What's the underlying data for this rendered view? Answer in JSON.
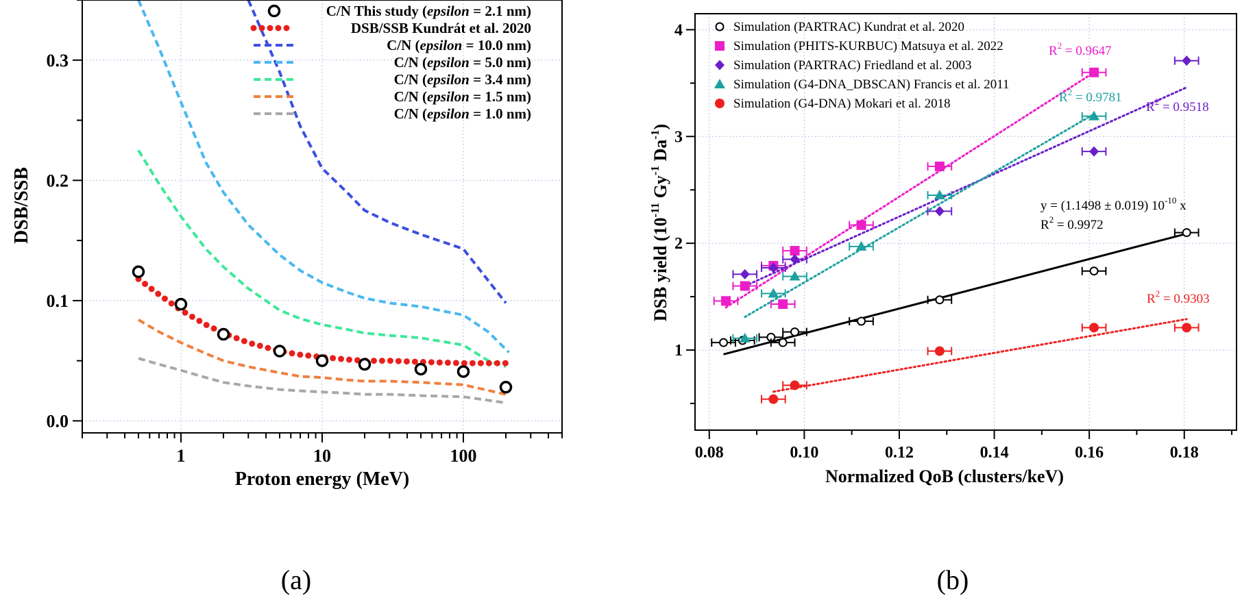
{
  "panel_a_label": "(a)",
  "panel_b_label": "(b)",
  "chart_data": [
    {
      "type": "line",
      "panel": "(a)",
      "xlabel": "Proton energy (MeV)",
      "ylabel": "DSB/SSB",
      "xscale": "log",
      "xlim": [
        0.2,
        500
      ],
      "ylim": [
        -0.01,
        0.35
      ],
      "xticks": [
        1,
        10,
        100
      ],
      "xtick_labels": [
        "1",
        "10",
        "100"
      ],
      "yticks": [
        0.0,
        0.1,
        0.2,
        0.3
      ],
      "ytick_labels": [
        "0.0",
        "0.1",
        "0.2",
        "0.3"
      ],
      "grid": true,
      "legend_position": "top-right",
      "series": [
        {
          "legend": "C/N This study",
          "legend_param": "epsilon",
          "legend_value": " = 2.1 nm)",
          "style": "open-circle",
          "color": "#000000",
          "x": [
            0.5,
            1,
            2,
            5,
            10,
            20,
            50,
            100,
            200
          ],
          "y": [
            0.124,
            0.097,
            0.072,
            0.058,
            0.05,
            0.047,
            0.043,
            0.041,
            0.028
          ]
        },
        {
          "legend": "DSB/SSB Kundrát et al. 2020",
          "style": "dotted-thick",
          "color": "#e8201c",
          "x": [
            0.5,
            0.7,
            1,
            1.5,
            2,
            3,
            5,
            7,
            10,
            15,
            20,
            30,
            50,
            100,
            200
          ],
          "y": [
            0.118,
            0.105,
            0.092,
            0.08,
            0.073,
            0.065,
            0.058,
            0.055,
            0.053,
            0.051,
            0.05,
            0.05,
            0.049,
            0.048,
            0.048
          ]
        },
        {
          "legend": "C/N (",
          "legend_param": "epsilon",
          "legend_value": " = 10.0 nm)",
          "style": "dashed",
          "color": "#3c4fe0",
          "x": [
            3,
            5,
            7,
            10,
            15,
            20,
            30,
            50,
            100,
            200
          ],
          "y": [
            0.35,
            0.29,
            0.245,
            0.21,
            0.19,
            0.175,
            0.165,
            0.155,
            0.143,
            0.098
          ]
        },
        {
          "legend": "C/N (",
          "legend_param": "epsilon",
          "legend_value": " = 5.0 nm)",
          "style": "dashed",
          "color": "#4ab8f0",
          "x": [
            0.5,
            0.7,
            1,
            1.5,
            2,
            3,
            5,
            7,
            10,
            15,
            20,
            30,
            50,
            100,
            150,
            210
          ],
          "y": [
            0.35,
            0.31,
            0.265,
            0.215,
            0.19,
            0.163,
            0.138,
            0.125,
            0.115,
            0.107,
            0.102,
            0.098,
            0.095,
            0.088,
            0.074,
            0.057
          ]
        },
        {
          "legend": "C/N (",
          "legend_param": "epsilon",
          "legend_value": " = 3.4 nm)",
          "style": "dashed",
          "color": "#3ee89a",
          "x": [
            0.5,
            0.7,
            1,
            1.5,
            2,
            3,
            5,
            7,
            10,
            15,
            20,
            30,
            50,
            100,
            150,
            200
          ],
          "y": [
            0.225,
            0.197,
            0.17,
            0.143,
            0.128,
            0.11,
            0.092,
            0.085,
            0.08,
            0.076,
            0.073,
            0.071,
            0.069,
            0.063,
            0.05,
            0.045
          ]
        },
        {
          "legend": "C/N (",
          "legend_param": "epsilon",
          "legend_value": " = 1.5 nm)",
          "style": "dashed",
          "color": "#f08040",
          "x": [
            0.5,
            0.7,
            1,
            1.5,
            2,
            3,
            5,
            7,
            10,
            15,
            20,
            30,
            50,
            100,
            200
          ],
          "y": [
            0.084,
            0.074,
            0.065,
            0.056,
            0.05,
            0.045,
            0.04,
            0.037,
            0.036,
            0.034,
            0.033,
            0.033,
            0.032,
            0.03,
            0.022
          ]
        },
        {
          "legend": "C/N (",
          "legend_param": "epsilon",
          "legend_value": " = 1.0 nm)",
          "style": "dashed",
          "color": "#a8a8a8",
          "x": [
            0.5,
            0.7,
            1,
            1.5,
            2,
            3,
            5,
            7,
            10,
            15,
            20,
            30,
            50,
            100,
            200
          ],
          "y": [
            0.052,
            0.047,
            0.042,
            0.036,
            0.032,
            0.029,
            0.026,
            0.025,
            0.024,
            0.023,
            0.022,
            0.022,
            0.021,
            0.02,
            0.015
          ]
        }
      ]
    },
    {
      "type": "scatter",
      "panel": "(b)",
      "xlabel": "Normalized QoB (clusters/keV)",
      "ylabel_main": "DSB yield (10",
      "ylabel_sup1": "-11",
      "ylabel_mid": " Gy",
      "ylabel_sup2": "-1",
      "ylabel_mid2": " Da",
      "ylabel_sup3": "-1",
      "ylabel_end": ")",
      "xlim": [
        0.077,
        0.191
      ],
      "ylim": [
        0.25,
        4.15
      ],
      "xticks": [
        0.08,
        0.1,
        0.12,
        0.14,
        0.16,
        0.18
      ],
      "xtick_labels": [
        "0.08",
        "0.10",
        "0.12",
        "0.14",
        "0.16",
        "0.18"
      ],
      "yticks": [
        1,
        2,
        3,
        4
      ],
      "ytick_labels": [
        "1",
        "2",
        "3",
        "4"
      ],
      "grid": true,
      "legend_position": "top-left",
      "x_error": 0.0025,
      "series": [
        {
          "legend": "Simulation (PARTRAC) Kundrat et al. 2020",
          "marker": "open-circle",
          "color": "#000000",
          "x": [
            0.083,
            0.087,
            0.093,
            0.0955,
            0.098,
            0.112,
            0.1285,
            0.161,
            0.1805
          ],
          "y": [
            1.07,
            1.09,
            1.12,
            1.07,
            1.17,
            1.27,
            1.47,
            1.74,
            2.1
          ],
          "fit": {
            "x": [
              0.083,
              0.1805
            ],
            "y": [
              0.96,
              2.09
            ],
            "style": "solid"
          },
          "equation_line1_pre": "y",
          "equation_line1_post": " = (1.1498 ± 0.019) 10",
          "equation_sup": "-10",
          "equation_line1_end": " x",
          "r2_value": " = 0.9972"
        },
        {
          "legend": "Simulation (PHITS-KURBUC) Matsuya et al. 2022",
          "marker": "square",
          "color": "#ec1ec8",
          "x": [
            0.0835,
            0.0875,
            0.0935,
            0.0955,
            0.098,
            0.112,
            0.1285,
            0.161
          ],
          "y": [
            1.46,
            1.6,
            1.79,
            1.43,
            1.93,
            2.17,
            2.72,
            3.6
          ],
          "fit": {
            "x": [
              0.0835,
              0.161
            ],
            "y": [
              1.4,
              3.6
            ],
            "style": "dotted"
          },
          "r2_value": " = 0.9647"
        },
        {
          "legend": "Simulation (PARTRAC) Friedland et al. 2003",
          "marker": "diamond",
          "color": "#6a1ec8",
          "x": [
            0.0875,
            0.0935,
            0.098,
            0.1285,
            0.161,
            0.1805
          ],
          "y": [
            1.71,
            1.77,
            1.85,
            2.3,
            2.86,
            3.71
          ],
          "fit": {
            "x": [
              0.0875,
              0.1805
            ],
            "y": [
              1.6,
              3.46
            ],
            "style": "dotted"
          },
          "r2_value": " = 0.9518"
        },
        {
          "legend": "Simulation (G4-DNA_DBSCAN) Francis et al. 2011",
          "marker": "triangle",
          "color": "#1ea0a0",
          "x": [
            0.0875,
            0.0935,
            0.098,
            0.112,
            0.1285,
            0.161
          ],
          "y": [
            1.11,
            1.53,
            1.69,
            1.97,
            2.45,
            3.19
          ],
          "fit": {
            "x": [
              0.0875,
              0.161
            ],
            "y": [
              1.31,
              3.21
            ],
            "style": "dotted"
          },
          "r2_value": " = 0.9781"
        },
        {
          "legend": "Simulation (G4-DNA) Mokari et al. 2018",
          "marker": "filled-circle",
          "color": "#ee2020",
          "x": [
            0.0935,
            0.098,
            0.1285,
            0.161,
            0.1805
          ],
          "y": [
            0.54,
            0.67,
            0.99,
            1.21,
            1.21
          ],
          "fit": {
            "x": [
              0.0935,
              0.1805
            ],
            "y": [
              0.61,
              1.29
            ],
            "style": "dotted"
          },
          "r2_value": " = 0.9303"
        }
      ]
    }
  ]
}
